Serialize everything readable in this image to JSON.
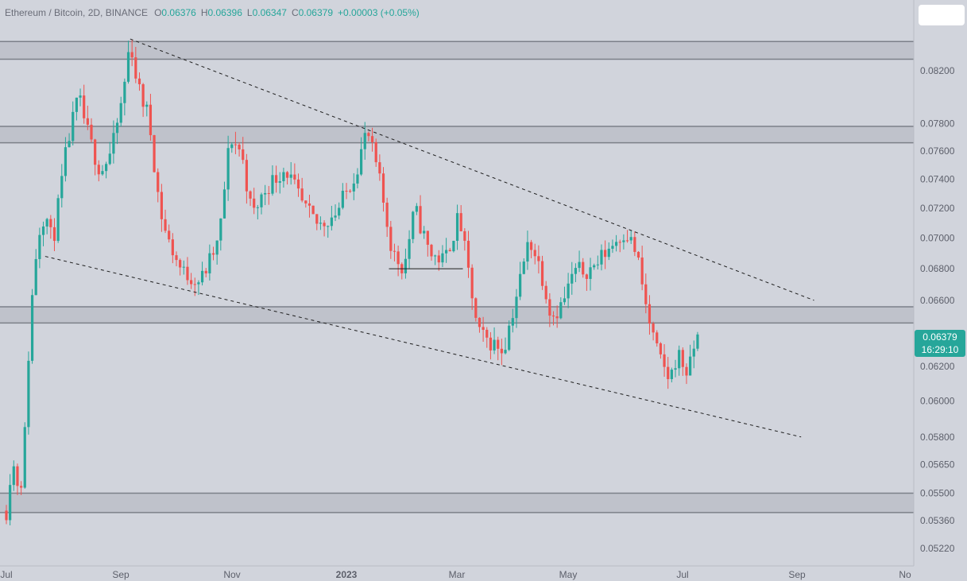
{
  "legend": {
    "symbol": "Ethereum / Bitcoin, 2D, BINANCE",
    "open_label": "O",
    "open": "0.06376",
    "high_label": "H",
    "high": "0.06396",
    "low_label": "L",
    "low": "0.06347",
    "close_label": "C",
    "close": "0.06379",
    "change": "+0.00003 (+0.05%)"
  },
  "last_price": {
    "value": "0.06379",
    "countdown": "16:29:10"
  },
  "colors": {
    "background": "#d1d4dc",
    "up": "#26a69a",
    "down": "#ef5350",
    "zone": "#bfc2cb",
    "zone_border": "#7c8089",
    "axis_text": "#5d606b"
  },
  "chart_data": {
    "type": "candlestick",
    "title": "",
    "y_scale": "log",
    "yticks": [
      "0.08200",
      "0.07800",
      "0.07600",
      "0.07400",
      "0.07200",
      "0.07000",
      "0.06800",
      "0.06600",
      "0.06200",
      "0.06000",
      "0.05800",
      "0.05650",
      "0.05500",
      "0.05360",
      "0.05220"
    ],
    "xticks": [
      "Jul",
      "Sep",
      "Nov",
      "2023",
      "Mar",
      "May",
      "Jul",
      "Sep",
      "No"
    ],
    "close_path": [
      [
        "2022-07-01",
        0.0541
      ],
      [
        "2022-07-04",
        0.0568
      ],
      [
        "2022-07-08",
        0.0552
      ],
      [
        "2022-07-10",
        0.0561
      ],
      [
        "2022-07-14",
        0.065
      ],
      [
        "2022-07-18",
        0.0702
      ],
      [
        "2022-07-22",
        0.0718
      ],
      [
        "2022-07-26",
        0.0696
      ],
      [
        "2022-08-03",
        0.0765
      ],
      [
        "2022-08-09",
        0.08
      ],
      [
        "2022-08-15",
        0.0768
      ],
      [
        "2022-08-21",
        0.0745
      ],
      [
        "2022-08-27",
        0.076
      ],
      [
        "2022-09-02",
        0.08
      ],
      [
        "2022-09-06",
        0.0845
      ],
      [
        "2022-09-10",
        0.0808
      ],
      [
        "2022-09-16",
        0.0785
      ],
      [
        "2022-09-22",
        0.072
      ],
      [
        "2022-09-26",
        0.07
      ],
      [
        "2022-10-04",
        0.0678
      ],
      [
        "2022-10-14",
        0.0672
      ],
      [
        "2022-10-24",
        0.0698
      ],
      [
        "2022-10-30",
        0.077
      ],
      [
        "2022-11-05",
        0.076
      ],
      [
        "2022-11-11",
        0.0715
      ],
      [
        "2022-11-19",
        0.0735
      ],
      [
        "2022-11-29",
        0.0748
      ],
      [
        "2022-12-09",
        0.072
      ],
      [
        "2022-12-17",
        0.0708
      ],
      [
        "2022-12-27",
        0.0718
      ],
      [
        "2023-01-06",
        0.0745
      ],
      [
        "2023-01-12",
        0.0775
      ],
      [
        "2023-01-18",
        0.0745
      ],
      [
        "2023-01-26",
        0.069
      ],
      [
        "2023-02-01",
        0.068
      ],
      [
        "2023-02-07",
        0.072
      ],
      [
        "2023-02-15",
        0.069
      ],
      [
        "2023-02-23",
        0.0685
      ],
      [
        "2023-03-03",
        0.0715
      ],
      [
        "2023-03-09",
        0.067
      ],
      [
        "2023-03-13",
        0.064
      ],
      [
        "2023-03-19",
        0.0635
      ],
      [
        "2023-03-27",
        0.063
      ],
      [
        "2023-04-02",
        0.0658
      ],
      [
        "2023-04-10",
        0.07
      ],
      [
        "2023-04-16",
        0.068
      ],
      [
        "2023-04-22",
        0.065
      ],
      [
        "2023-04-28",
        0.0658
      ],
      [
        "2023-05-04",
        0.0678
      ],
      [
        "2023-05-14",
        0.068
      ],
      [
        "2023-05-24",
        0.0695
      ],
      [
        "2023-06-01",
        0.0705
      ],
      [
        "2023-06-07",
        0.069
      ],
      [
        "2023-06-13",
        0.065
      ],
      [
        "2023-06-19",
        0.0625
      ],
      [
        "2023-06-25",
        0.0612
      ],
      [
        "2023-06-29",
        0.0628
      ],
      [
        "2023-07-05",
        0.0615
      ],
      [
        "2023-07-09",
        0.0637
      ],
      [
        "2023-07-11",
        0.06379
      ]
    ],
    "zones": [
      [
        0.0829,
        0.0843
      ],
      [
        0.0766,
        0.0778
      ],
      [
        0.0646,
        0.0656
      ],
      [
        0.054,
        0.055
      ]
    ],
    "trendlines": [
      {
        "from": [
          "2022-09-06",
          0.0845
        ],
        "to": [
          "2023-09-11",
          0.066
        ],
        "style": "dashed"
      },
      {
        "from": [
          "2022-07-22",
          0.0688
        ],
        "to": [
          "2023-09-04",
          0.058
        ],
        "style": "dashed"
      },
      {
        "from": [
          "2023-01-24",
          0.068
        ],
        "to": [
          "2023-03-05",
          0.068
        ],
        "style": "solid"
      }
    ]
  }
}
